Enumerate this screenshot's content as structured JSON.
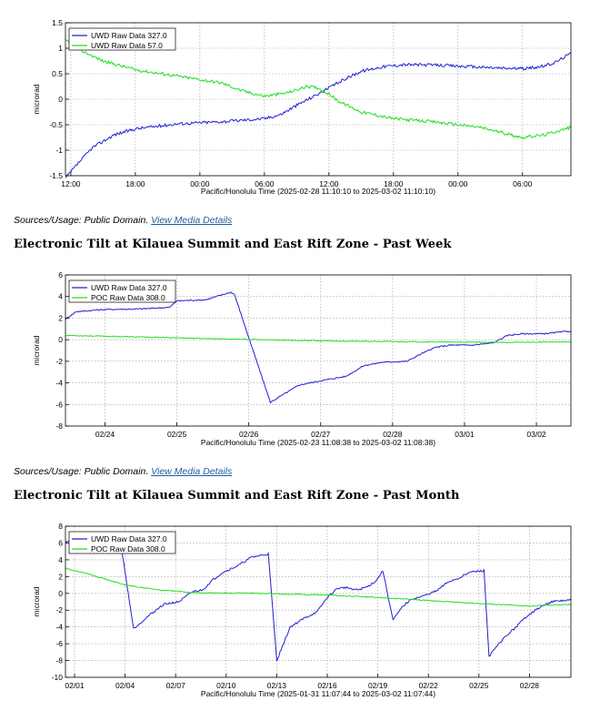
{
  "chart_data": [
    {
      "type": "line",
      "xlabel": "Pacific/Honolulu Time (2025-02-28 11:10:10 to 2025-03-02 11:10:10)",
      "ylabel": "microrad",
      "x_ticks": [
        "12:00",
        "18:00",
        "00:00",
        "06:00",
        "12:00",
        "18:00",
        "00:00",
        "06:00"
      ],
      "xlim": [
        11.5,
        58.5
      ],
      "x_tick_pos": [
        12,
        18,
        24,
        30,
        36,
        42,
        48,
        54
      ],
      "ylim": [
        -1.5,
        1.5
      ],
      "y_ticks": [
        1.5,
        1,
        0.5,
        0,
        -0.5,
        -1,
        -1.5
      ],
      "grid": true,
      "legend_position": "top-left",
      "series": [
        {
          "name": "UWD Raw Data 327.0",
          "color": "#1f1fd6",
          "noise": 0.03,
          "x": [
            11.5,
            12.5,
            14,
            16,
            18,
            22,
            26,
            30,
            31.5,
            33,
            34.5,
            36,
            37.5,
            39,
            41,
            43,
            46,
            50,
            52,
            54,
            55,
            56,
            57,
            58.5
          ],
          "y": [
            -1.55,
            -1.3,
            -0.95,
            -0.7,
            -0.58,
            -0.48,
            -0.44,
            -0.38,
            -0.3,
            -0.12,
            0.05,
            0.22,
            0.4,
            0.55,
            0.64,
            0.68,
            0.67,
            0.63,
            0.61,
            0.6,
            0.62,
            0.65,
            0.72,
            0.9
          ]
        },
        {
          "name": "UWD Raw Data 57.0",
          "color": "#22dd22",
          "noise": 0.03,
          "x": [
            11.5,
            13,
            15,
            18,
            22,
            26,
            28,
            30,
            32,
            34,
            35,
            36,
            37,
            39,
            42,
            46,
            50,
            52,
            54,
            56,
            58.5
          ],
          "y": [
            1.15,
            0.95,
            0.75,
            0.58,
            0.45,
            0.32,
            0.16,
            0.06,
            0.12,
            0.25,
            0.22,
            0.1,
            -0.05,
            -0.25,
            -0.38,
            -0.45,
            -0.55,
            -0.65,
            -0.75,
            -0.7,
            -0.55
          ]
        }
      ]
    },
    {
      "type": "line",
      "xlabel": "Pacific/Honolulu Time (2025-02-23 11:08:38 to 2025-03-02 11:08:38)",
      "ylabel": "microrad",
      "x_ticks": [
        "02/24",
        "02/25",
        "02/26",
        "02/27",
        "02/28",
        "03/01",
        "03/02"
      ],
      "xlim": [
        23.45,
        30.48
      ],
      "x_tick_pos": [
        24,
        25,
        26,
        27,
        28,
        29,
        30
      ],
      "ylim": [
        -8,
        6
      ],
      "y_ticks": [
        6,
        4,
        2,
        0,
        -2,
        -4,
        -6,
        -8
      ],
      "grid": true,
      "legend_position": "top-left",
      "series": [
        {
          "name": "UWD Raw Data 327.0",
          "color": "#1f1fd6",
          "noise": 0.06,
          "x": [
            23.45,
            23.6,
            24,
            24.5,
            24.9,
            25,
            25.4,
            25.6,
            25.75,
            25.8,
            26.3,
            26.7,
            27.0,
            27.35,
            27.6,
            27.85,
            28.2,
            28.4,
            28.6,
            28.8,
            29.1,
            29.4,
            29.6,
            29.8,
            30.1,
            30.48
          ],
          "y": [
            1.9,
            2.6,
            2.8,
            2.85,
            3.0,
            3.6,
            3.7,
            4.1,
            4.4,
            4.2,
            -5.8,
            -4.2,
            -3.8,
            -3.4,
            -2.4,
            -2.1,
            -2.0,
            -1.3,
            -0.7,
            -0.5,
            -0.5,
            -0.3,
            0.4,
            0.55,
            0.55,
            0.8
          ]
        },
        {
          "name": "POC Raw Data 308.0",
          "color": "#22dd22",
          "noise": 0.04,
          "x": [
            23.45,
            24.5,
            25.5,
            26.5,
            27.5,
            28.5,
            29.5,
            30.48
          ],
          "y": [
            0.4,
            0.25,
            0.1,
            -0.05,
            -0.15,
            -0.2,
            -0.25,
            -0.2
          ]
        }
      ]
    },
    {
      "type": "line",
      "xlabel": "Pacific/Honolulu Time (2025-01-31 11:07:44 to 2025-03-02 11:07:44)",
      "ylabel": "microrad",
      "x_ticks": [
        "02/01",
        "02/04",
        "02/07",
        "02/10",
        "02/13",
        "02/16",
        "02/19",
        "02/22",
        "02/25",
        "02/28"
      ],
      "xlim": [
        0.46,
        30.46
      ],
      "x_tick_pos": [
        1,
        4,
        7,
        10,
        13,
        16,
        19,
        22,
        25,
        28
      ],
      "ylim": [
        -10,
        8
      ],
      "y_ticks": [
        8,
        6,
        4,
        2,
        0,
        -2,
        -4,
        -6,
        -8,
        -10
      ],
      "grid": true,
      "legend_position": "top-left",
      "series": [
        {
          "name": "UWD Raw Data 327.0",
          "color": "#1f1fd6",
          "noise": 0.12,
          "x": [
            0.46,
            1.5,
            3.6,
            3.8,
            4.5,
            5.5,
            6.3,
            7.2,
            8,
            8.6,
            9.2,
            9.8,
            10.7,
            11.5,
            12.5,
            13,
            13.8,
            14.6,
            15.4,
            16,
            16.6,
            17.1,
            17.8,
            18.4,
            18.9,
            19.3,
            19.9,
            20.5,
            21,
            21.6,
            22.5,
            23.2,
            23.8,
            24.4,
            25.3,
            25.6,
            26.4,
            27.2,
            27.9,
            28.6,
            29.3,
            30.46
          ],
          "y": [
            6.2,
            6.3,
            6.4,
            5.2,
            -4.2,
            -2.5,
            -1.3,
            -1.0,
            0.2,
            0.4,
            1.6,
            2.5,
            3.3,
            4.3,
            4.7,
            -8.0,
            -4.0,
            -3.0,
            -2.2,
            -0.5,
            0.6,
            0.7,
            0.4,
            0.8,
            1.5,
            2.7,
            -3.2,
            -1.5,
            -0.7,
            -0.4,
            0.3,
            1.4,
            1.8,
            2.5,
            2.7,
            -7.5,
            -5.5,
            -4.0,
            -2.6,
            -1.7,
            -1.0,
            -0.8
          ]
        },
        {
          "name": "POC Raw Data 308.0",
          "color": "#22dd22",
          "noise": 0.06,
          "x": [
            0.46,
            2,
            4,
            6,
            8,
            12,
            16,
            20,
            24,
            28,
            30.46
          ],
          "y": [
            3.0,
            2.2,
            1.0,
            0.4,
            0.1,
            0.0,
            -0.2,
            -0.6,
            -1.1,
            -1.5,
            -1.3
          ]
        }
      ]
    }
  ],
  "sections": [
    {
      "source_prefix": "Sources/Usage: Public Domain.",
      "link_text": "View Media Details"
    },
    {
      "source_prefix": "Sources/Usage: Public Domain.",
      "link_text": "View Media Details"
    }
  ],
  "headings": [
    "Electronic Tilt at Kīlauea Summit and East Rift Zone - Past Week",
    "Electronic Tilt at Kīlauea Summit and East Rift Zone - Past Month"
  ]
}
